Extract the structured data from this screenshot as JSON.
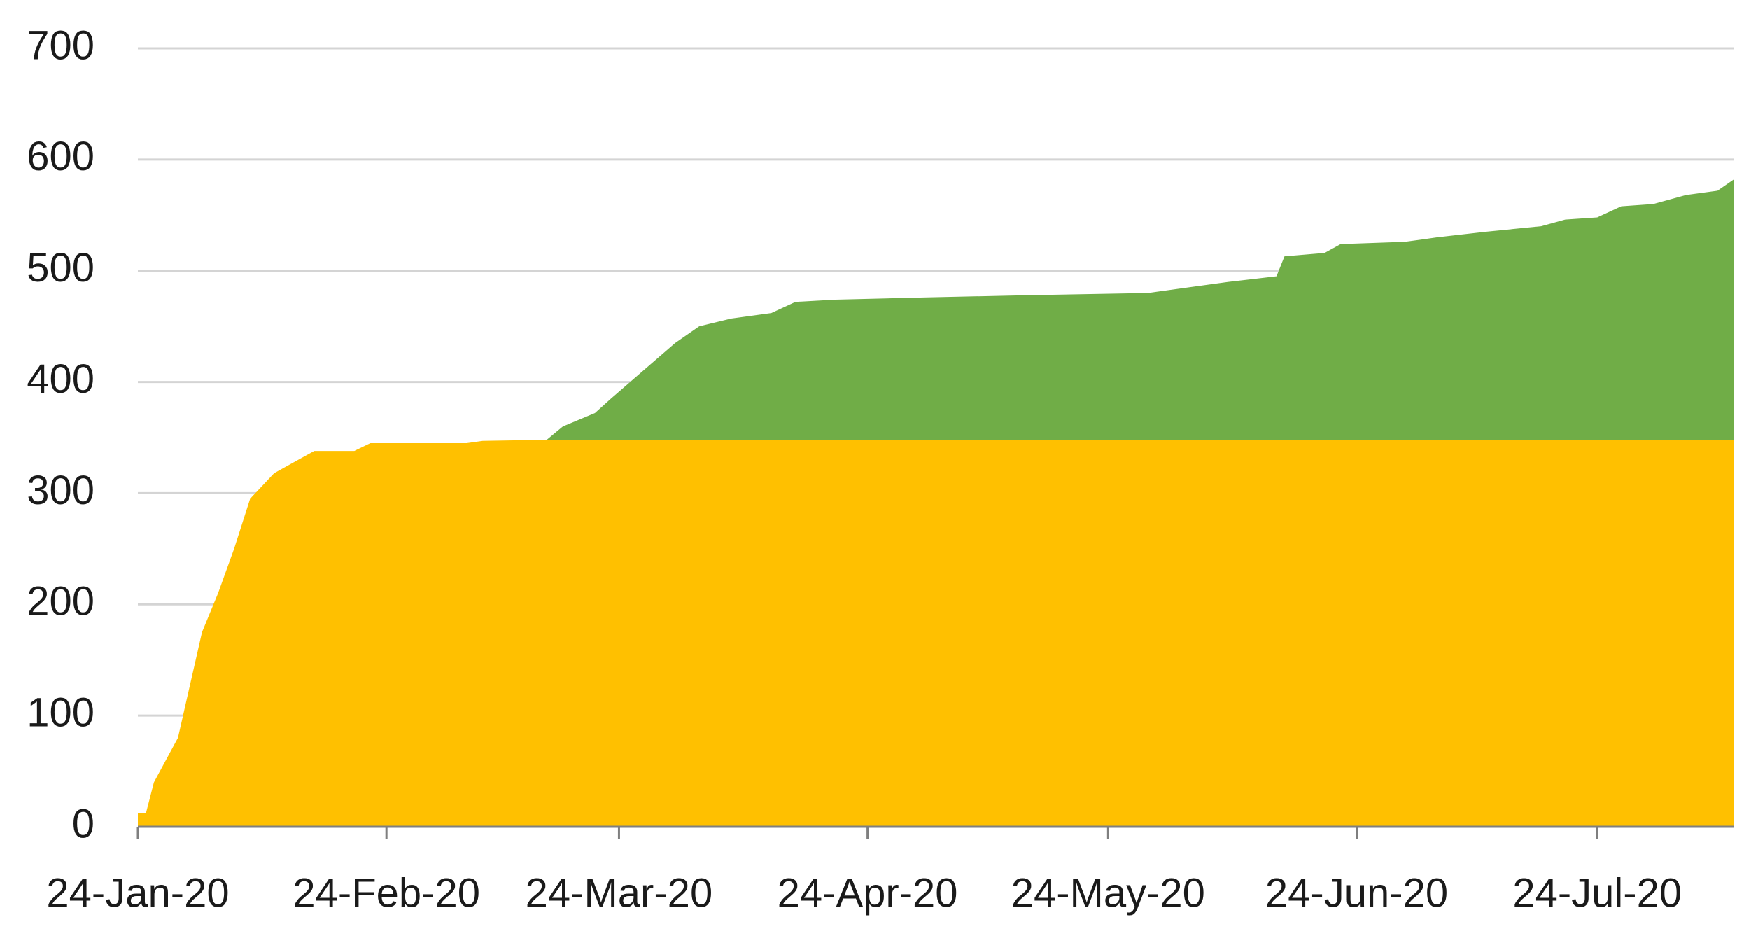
{
  "chart_data": {
    "type": "stacked-area",
    "x": [
      "2020-01-24",
      "2020-01-25",
      "2020-01-26",
      "2020-01-29",
      "2020-02-01",
      "2020-02-03",
      "2020-02-05",
      "2020-02-07",
      "2020-02-10",
      "2020-02-13",
      "2020-02-15",
      "2020-02-20",
      "2020-02-22",
      "2020-03-05",
      "2020-03-07",
      "2020-03-15",
      "2020-03-17",
      "2020-03-21",
      "2020-03-23",
      "2020-03-27",
      "2020-03-31",
      "2020-04-03",
      "2020-04-07",
      "2020-04-12",
      "2020-04-15",
      "2020-04-20",
      "2020-05-01",
      "2020-05-14",
      "2020-05-29",
      "2020-06-03",
      "2020-06-08",
      "2020-06-14",
      "2020-06-15",
      "2020-06-20",
      "2020-06-22",
      "2020-06-30",
      "2020-07-04",
      "2020-07-10",
      "2020-07-17",
      "2020-07-20",
      "2020-07-24",
      "2020-07-27",
      "2020-07-31",
      "2020-08-04",
      "2020-08-08",
      "2020-08-10"
    ],
    "series": [
      {
        "color": "#ffc000",
        "values": [
          12,
          12,
          40,
          80,
          175,
          210,
          250,
          295,
          318,
          330,
          338,
          338,
          345,
          345,
          347,
          348,
          348,
          348,
          348,
          348,
          348,
          348,
          348,
          348,
          348,
          348,
          348,
          348,
          348,
          348,
          348,
          348,
          348,
          348,
          348,
          348,
          348,
          348,
          348,
          348,
          348,
          348,
          348,
          348,
          348,
          348
        ]
      },
      {
        "color": "#70ad47",
        "values": [
          0,
          0,
          0,
          0,
          0,
          0,
          0,
          0,
          0,
          0,
          0,
          0,
          0,
          0,
          0,
          0,
          12,
          24,
          37,
          62,
          87,
          102,
          109,
          114,
          124,
          126,
          128,
          130,
          132,
          137,
          142,
          147,
          165,
          168,
          176,
          178,
          182,
          187,
          192,
          198,
          200,
          210,
          212,
          220,
          224,
          234
        ]
      }
    ],
    "xlim": [
      "2020-01-24",
      "2020-08-10"
    ],
    "xticks": [
      {
        "value": "2020-01-24",
        "label": "24-Jan-20"
      },
      {
        "value": "2020-02-24",
        "label": "24-Feb-20"
      },
      {
        "value": "2020-03-24",
        "label": "24-Mar-20"
      },
      {
        "value": "2020-04-24",
        "label": "24-Apr-20"
      },
      {
        "value": "2020-05-24",
        "label": "24-May-20"
      },
      {
        "value": "2020-06-24",
        "label": "24-Jun-20"
      },
      {
        "value": "2020-07-24",
        "label": "24-Jul-20"
      }
    ],
    "ylim": [
      0,
      700
    ],
    "yticks": [
      0,
      100,
      200,
      300,
      400,
      500,
      600,
      700
    ],
    "grid": true
  }
}
